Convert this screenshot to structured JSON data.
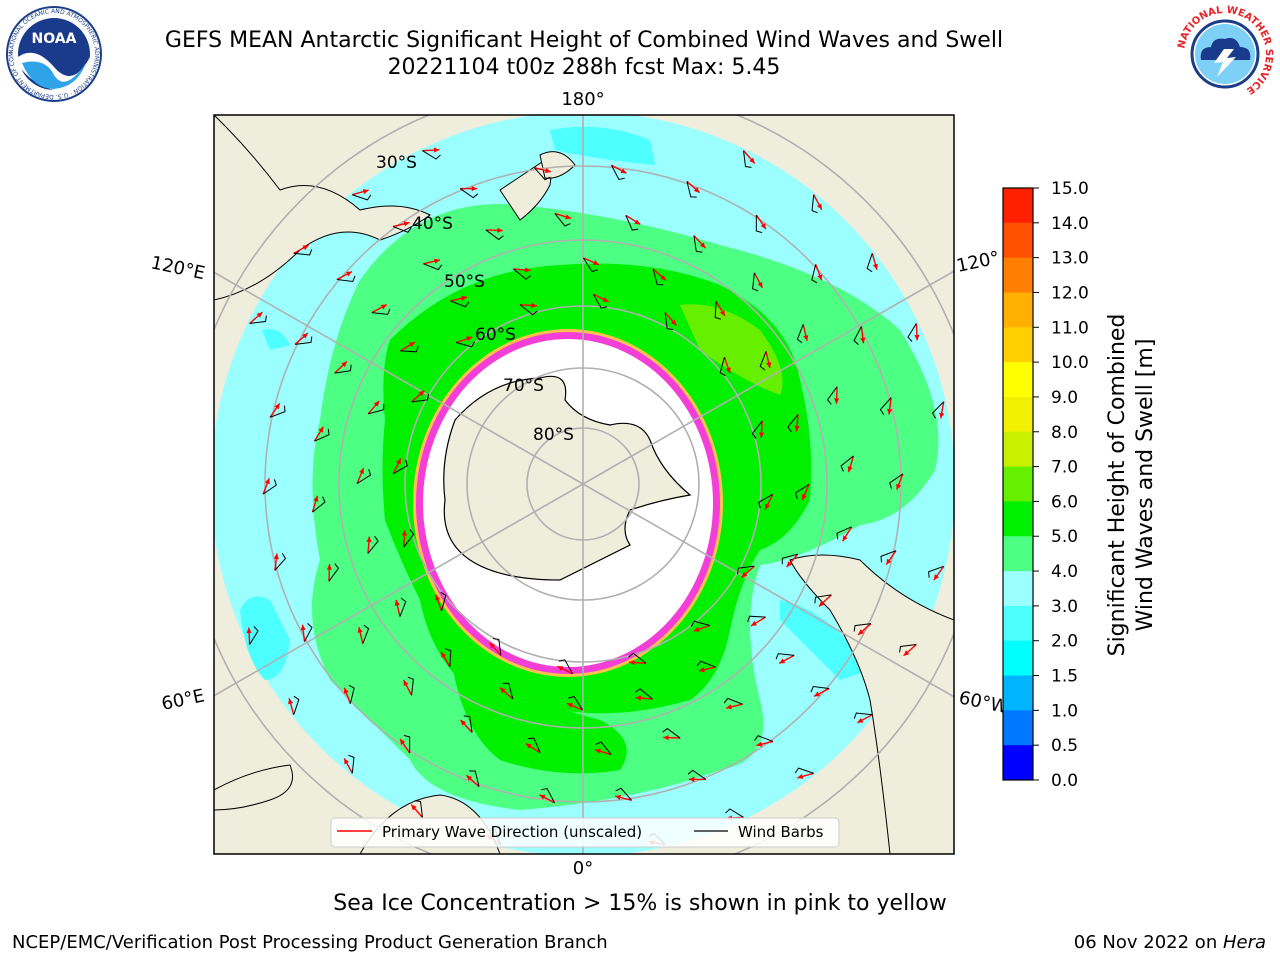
{
  "header": {
    "title_line1": "GEFS MEAN Antarctic Significant Height of Combined Wind Waves and Swell",
    "title_line2": "20221104 t00z 288h fcst   Max: 5.45"
  },
  "logos": {
    "left": {
      "icon": "noaa-logo",
      "text": "NOAA",
      "ring_text": "NATIONAL OCEANIC AND ATMOSPHERIC ADMINISTRATION · U.S. DEPARTMENT OF COMMERCE"
    },
    "right": {
      "icon": "nws-logo",
      "ring_text": "NATIONAL WEATHER SERVICE"
    }
  },
  "map": {
    "projection": "south-polar-stereographic",
    "longitude_labels": {
      "top": "180°",
      "bottom": "0°",
      "upper_left": "120°E",
      "upper_right": "120°",
      "lower_left": "60°E",
      "lower_right": "60°W"
    },
    "latitude_labels": [
      "30°S",
      "40°S",
      "50°S",
      "60°S",
      "70°S",
      "80°S"
    ],
    "legend": {
      "primary_wave": "Primary Wave Direction (unscaled)",
      "wind_barbs": "Wind Barbs"
    },
    "colors": {
      "land": "#efeddc",
      "ocean_light": "#9bffff",
      "ocean_mid": "#4dff82",
      "ocean_high": "#00f000",
      "ice_pink": "#f33fd8",
      "ice_yellow": "#ffc14d",
      "arrow": "#ff0000",
      "grid": "#b0b0b0"
    }
  },
  "colorbar": {
    "label_line1": "Significant Height of Combined",
    "label_line2": "Wind Waves and Swell [m]",
    "ticks": [
      "0.0",
      "0.5",
      "1.0",
      "1.5",
      "2.0",
      "3.0",
      "4.0",
      "5.0",
      "6.0",
      "7.0",
      "8.0",
      "9.0",
      "10.0",
      "11.0",
      "12.0",
      "13.0",
      "14.0",
      "15.0"
    ],
    "colors": [
      "#0000ff",
      "#0078ff",
      "#00b4ff",
      "#00ffff",
      "#4dffff",
      "#9bffff",
      "#4dff82",
      "#00f000",
      "#66f000",
      "#c8f000",
      "#f0f000",
      "#ffff00",
      "#ffd000",
      "#ffb000",
      "#ff8000",
      "#ff5000",
      "#ff2000",
      "#ff0000"
    ]
  },
  "notes": {
    "sea_ice": "Sea Ice Concentration > 15% is shown in pink to yellow"
  },
  "footer": {
    "left": "NCEP/EMC/Verification Post Processing Product Generation Branch",
    "right_date": "06 Nov 2022 on ",
    "right_host": "Hera"
  }
}
